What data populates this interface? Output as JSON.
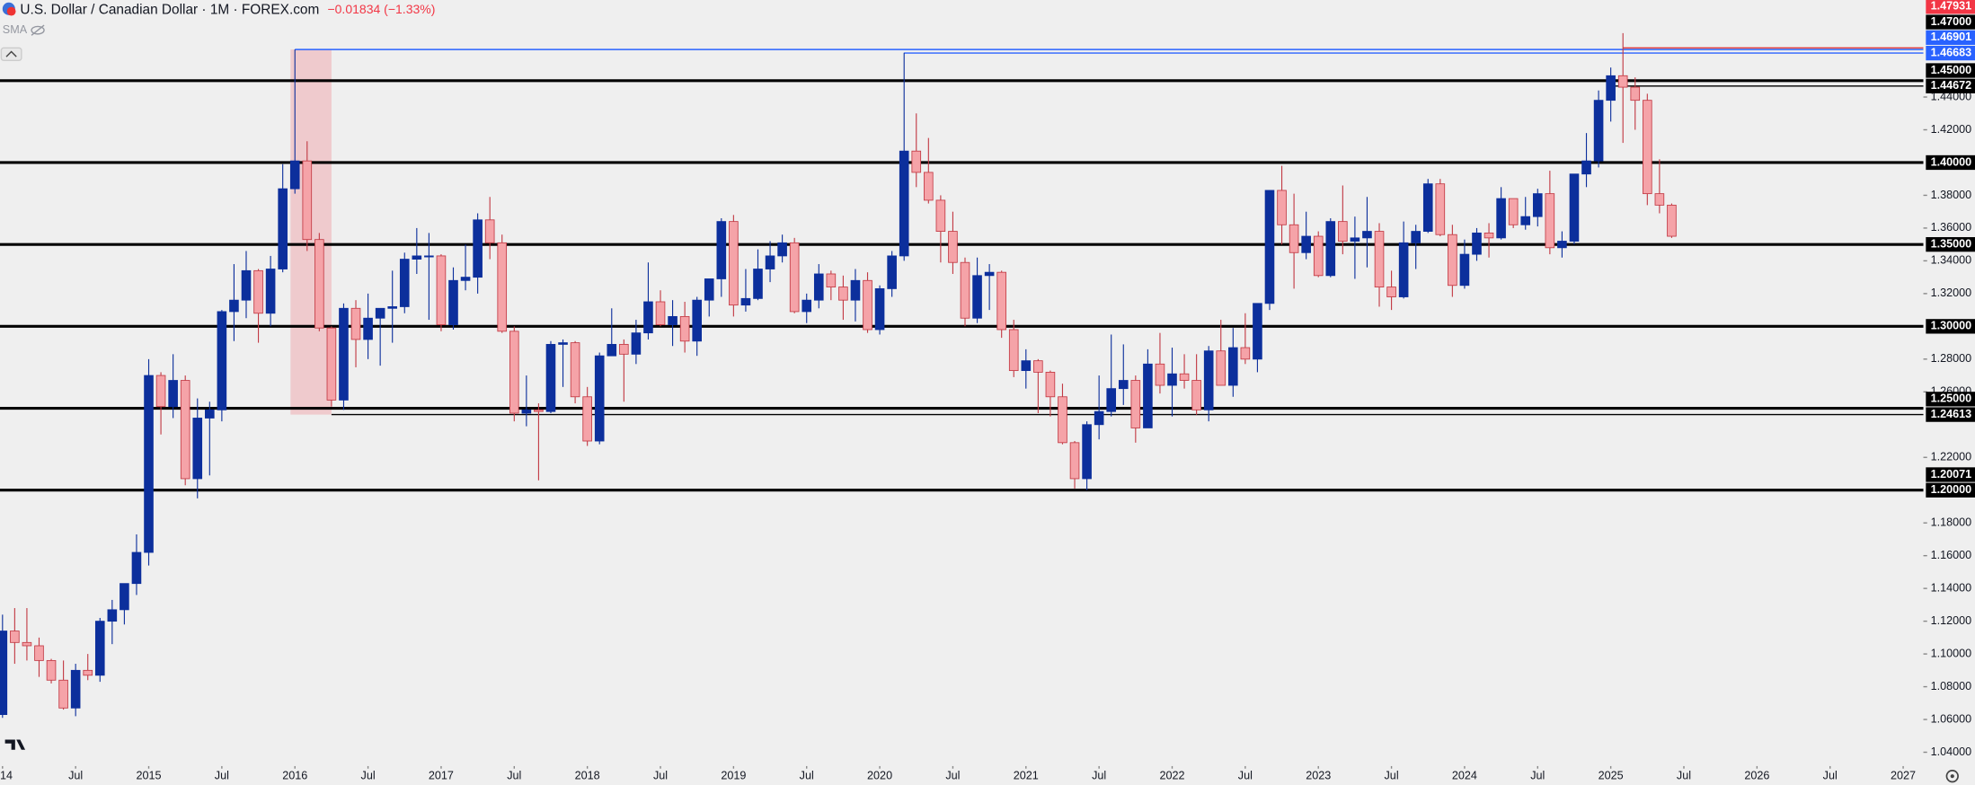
{
  "chart_data": {
    "type": "candlestick",
    "title": "U.S. Dollar / Canadian Dollar · 1M · FOREX.com",
    "change": "−0.01834 (−1.33%)",
    "indicator": "SMA",
    "up_color": "#0c2f9c",
    "down_color": "#f5a3a8",
    "down_border": "#c23a44",
    "ylim": [
      1.03,
      1.49
    ],
    "xlim": [
      "2014-01",
      "2027-04"
    ],
    "yticks": [
      {
        "value": 1.04,
        "label": "1.04000"
      },
      {
        "value": 1.06,
        "label": "1.06000"
      },
      {
        "value": 1.08,
        "label": "1.08000"
      },
      {
        "value": 1.1,
        "label": "1.10000"
      },
      {
        "value": 1.12,
        "label": "1.12000"
      },
      {
        "value": 1.14,
        "label": "1.14000"
      },
      {
        "value": 1.16,
        "label": "1.16000"
      },
      {
        "value": 1.18,
        "label": "1.18000"
      },
      {
        "value": 1.22,
        "label": "1.22000"
      },
      {
        "value": 1.26,
        "label": "1.26000"
      },
      {
        "value": 1.28,
        "label": "1.28000"
      },
      {
        "value": 1.32,
        "label": "1.32000"
      },
      {
        "value": 1.34,
        "label": "1.34000"
      },
      {
        "value": 1.36,
        "label": "1.36000"
      },
      {
        "value": 1.38,
        "label": "1.38000"
      },
      {
        "value": 1.42,
        "label": "1.42000"
      },
      {
        "value": 1.44,
        "label": "1.44000"
      }
    ],
    "xticks": [
      {
        "value": "2014-01",
        "label": "14"
      },
      {
        "value": "2014-07",
        "label": "Jul"
      },
      {
        "value": "2015-01",
        "label": "2015"
      },
      {
        "value": "2015-07",
        "label": "Jul"
      },
      {
        "value": "2016-01",
        "label": "2016"
      },
      {
        "value": "2016-07",
        "label": "Jul"
      },
      {
        "value": "2017-01",
        "label": "2017"
      },
      {
        "value": "2017-07",
        "label": "Jul"
      },
      {
        "value": "2018-01",
        "label": "2018"
      },
      {
        "value": "2018-07",
        "label": "Jul"
      },
      {
        "value": "2019-01",
        "label": "2019"
      },
      {
        "value": "2019-07",
        "label": "Jul"
      },
      {
        "value": "2020-01",
        "label": "2020"
      },
      {
        "value": "2020-07",
        "label": "Jul"
      },
      {
        "value": "2021-01",
        "label": "2021"
      },
      {
        "value": "2021-07",
        "label": "Jul"
      },
      {
        "value": "2022-01",
        "label": "2022"
      },
      {
        "value": "2022-07",
        "label": "Jul"
      },
      {
        "value": "2023-01",
        "label": "2023"
      },
      {
        "value": "2023-07",
        "label": "Jul"
      },
      {
        "value": "2024-01",
        "label": "2024"
      },
      {
        "value": "2024-07",
        "label": "Jul"
      },
      {
        "value": "2025-01",
        "label": "2025"
      },
      {
        "value": "2025-07",
        "label": "Jul"
      },
      {
        "value": "2026-01",
        "label": "2026"
      },
      {
        "value": "2026-07",
        "label": "Jul"
      },
      {
        "value": "2027-01",
        "label": "2027"
      }
    ],
    "price_labels": [
      {
        "value": 1.47931,
        "label": "1.47931",
        "bg": "#f23645"
      },
      {
        "value": 1.47,
        "label": "1.47000",
        "bg": "#000000"
      },
      {
        "value": 1.46901,
        "label": "1.46901",
        "bg": "#2962ff"
      },
      {
        "value": 1.46683,
        "label": "1.46683",
        "bg": "#2962ff"
      },
      {
        "value": 1.45,
        "label": "1.45000",
        "bg": "#000000"
      },
      {
        "value": 1.44672,
        "label": "1.44672",
        "bg": "#000000"
      },
      {
        "value": 1.4,
        "label": "1.40000",
        "bg": "#000000"
      },
      {
        "value": 1.35,
        "label": "1.35000",
        "bg": "#000000"
      },
      {
        "value": 1.3,
        "label": "1.30000",
        "bg": "#000000"
      },
      {
        "value": 1.25,
        "label": "1.25000",
        "bg": "#000000"
      },
      {
        "value": 1.24613,
        "label": "1.24613",
        "bg": "#000000"
      },
      {
        "value": 1.20071,
        "label": "1.20071",
        "bg": "#000000"
      },
      {
        "value": 1.2,
        "label": "1.20000",
        "bg": "#000000"
      }
    ],
    "price_lines": [
      {
        "value": 1.47,
        "color": "#e03a3a",
        "start": "2025-02",
        "thick": false
      },
      {
        "value": 1.46901,
        "color": "#2962ff",
        "start": "2016-01",
        "thick": false
      },
      {
        "value": 1.46683,
        "color": "#2962ff",
        "start": "2020-03",
        "thick": false
      },
      {
        "value": 1.45,
        "color": "#000000",
        "thick": true
      },
      {
        "value": 1.44672,
        "color": "#000000",
        "start": "2025-01",
        "thick": false
      },
      {
        "value": 1.4,
        "color": "#000000",
        "thick": true
      },
      {
        "value": 1.35,
        "color": "#000000",
        "thick": true
      },
      {
        "value": 1.3,
        "color": "#000000",
        "thick": true
      },
      {
        "value": 1.25,
        "color": "#000000",
        "thick": true
      },
      {
        "value": 1.24613,
        "color": "#000000",
        "start": "2016-04",
        "thick": false
      },
      {
        "value": 1.2,
        "color": "#000000",
        "thick": true
      }
    ],
    "zones": [
      {
        "from": "2016-01",
        "to": "2016-04",
        "top": 1.46901,
        "bottom": 1.24613,
        "color": "rgba(242,54,69,0.2)"
      }
    ],
    "x": [
      "2014-01",
      "2014-02",
      "2014-03",
      "2014-04",
      "2014-05",
      "2014-06",
      "2014-07",
      "2014-08",
      "2014-09",
      "2014-10",
      "2014-11",
      "2014-12",
      "2015-01",
      "2015-02",
      "2015-03",
      "2015-04",
      "2015-05",
      "2015-06",
      "2015-07",
      "2015-08",
      "2015-09",
      "2015-10",
      "2015-11",
      "2015-12",
      "2016-01",
      "2016-02",
      "2016-03",
      "2016-04",
      "2016-05",
      "2016-06",
      "2016-07",
      "2016-08",
      "2016-09",
      "2016-10",
      "2016-11",
      "2016-12",
      "2017-01",
      "2017-02",
      "2017-03",
      "2017-04",
      "2017-05",
      "2017-06",
      "2017-07",
      "2017-08",
      "2017-09",
      "2017-10",
      "2017-11",
      "2017-12",
      "2018-01",
      "2018-02",
      "2018-03",
      "2018-04",
      "2018-05",
      "2018-06",
      "2018-07",
      "2018-08",
      "2018-09",
      "2018-10",
      "2018-11",
      "2018-12",
      "2019-01",
      "2019-02",
      "2019-03",
      "2019-04",
      "2019-05",
      "2019-06",
      "2019-07",
      "2019-08",
      "2019-09",
      "2019-10",
      "2019-11",
      "2019-12",
      "2020-01",
      "2020-02",
      "2020-03",
      "2020-04",
      "2020-05",
      "2020-06",
      "2020-07",
      "2020-08",
      "2020-09",
      "2020-10",
      "2020-11",
      "2020-12",
      "2021-01",
      "2021-02",
      "2021-03",
      "2021-04",
      "2021-05",
      "2021-06",
      "2021-07",
      "2021-08",
      "2021-09",
      "2021-10",
      "2021-11",
      "2021-12",
      "2022-01",
      "2022-02",
      "2022-03",
      "2022-04",
      "2022-05",
      "2022-06",
      "2022-07",
      "2022-08",
      "2022-09",
      "2022-10",
      "2022-11",
      "2022-12",
      "2023-01",
      "2023-02",
      "2023-03",
      "2023-04",
      "2023-05",
      "2023-06",
      "2023-07",
      "2023-08",
      "2023-09",
      "2023-10",
      "2023-11",
      "2023-12",
      "2024-01",
      "2024-02",
      "2024-03",
      "2024-04",
      "2024-05",
      "2024-06",
      "2024-07",
      "2024-08",
      "2024-09",
      "2024-10",
      "2024-11",
      "2024-12",
      "2025-01",
      "2025-02",
      "2025-03",
      "2025-04",
      "2025-05",
      "2025-06"
    ],
    "candles": [
      [
        1.063,
        1.124,
        1.061,
        1.114
      ],
      [
        1.114,
        1.128,
        1.094,
        1.107
      ],
      [
        1.107,
        1.128,
        1.096,
        1.105
      ],
      [
        1.105,
        1.11,
        1.086,
        1.096
      ],
      [
        1.096,
        1.097,
        1.082,
        1.084
      ],
      [
        1.084,
        1.096,
        1.066,
        1.067
      ],
      [
        1.067,
        1.094,
        1.062,
        1.09
      ],
      [
        1.09,
        1.1,
        1.084,
        1.087
      ],
      [
        1.087,
        1.122,
        1.083,
        1.12
      ],
      [
        1.12,
        1.133,
        1.106,
        1.127
      ],
      [
        1.127,
        1.143,
        1.118,
        1.143
      ],
      [
        1.143,
        1.173,
        1.136,
        1.162
      ],
      [
        1.162,
        1.28,
        1.154,
        1.27
      ],
      [
        1.27,
        1.272,
        1.234,
        1.251
      ],
      [
        1.251,
        1.283,
        1.244,
        1.267
      ],
      [
        1.267,
        1.27,
        1.203,
        1.207
      ],
      [
        1.207,
        1.256,
        1.195,
        1.244
      ],
      [
        1.244,
        1.254,
        1.209,
        1.249
      ],
      [
        1.249,
        1.31,
        1.242,
        1.309
      ],
      [
        1.309,
        1.338,
        1.291,
        1.316
      ],
      [
        1.316,
        1.346,
        1.305,
        1.334
      ],
      [
        1.334,
        1.335,
        1.29,
        1.308
      ],
      [
        1.308,
        1.343,
        1.3,
        1.335
      ],
      [
        1.335,
        1.399,
        1.333,
        1.384
      ],
      [
        1.384,
        1.469,
        1.381,
        1.401
      ],
      [
        1.401,
        1.413,
        1.346,
        1.353
      ],
      [
        1.353,
        1.357,
        1.297,
        1.299
      ],
      [
        1.299,
        1.3,
        1.251,
        1.255
      ],
      [
        1.255,
        1.314,
        1.249,
        1.311
      ],
      [
        1.311,
        1.316,
        1.275,
        1.292
      ],
      [
        1.292,
        1.32,
        1.28,
        1.305
      ],
      [
        1.305,
        1.311,
        1.276,
        1.311
      ],
      [
        1.311,
        1.334,
        1.29,
        1.312
      ],
      [
        1.312,
        1.345,
        1.308,
        1.341
      ],
      [
        1.341,
        1.36,
        1.332,
        1.343
      ],
      [
        1.343,
        1.357,
        1.304,
        1.343
      ],
      [
        1.343,
        1.344,
        1.297,
        1.301
      ],
      [
        1.301,
        1.336,
        1.298,
        1.328
      ],
      [
        1.328,
        1.35,
        1.322,
        1.33
      ],
      [
        1.33,
        1.369,
        1.32,
        1.365
      ],
      [
        1.365,
        1.379,
        1.341,
        1.351
      ],
      [
        1.351,
        1.356,
        1.296,
        1.297
      ],
      [
        1.297,
        1.3,
        1.242,
        1.247
      ],
      [
        1.247,
        1.27,
        1.239,
        1.249
      ],
      [
        1.249,
        1.253,
        1.206,
        1.248
      ],
      [
        1.248,
        1.291,
        1.247,
        1.289
      ],
      [
        1.289,
        1.292,
        1.263,
        1.29
      ],
      [
        1.29,
        1.291,
        1.253,
        1.257
      ],
      [
        1.257,
        1.263,
        1.227,
        1.23
      ],
      [
        1.23,
        1.284,
        1.228,
        1.282
      ],
      [
        1.282,
        1.311,
        1.282,
        1.289
      ],
      [
        1.289,
        1.292,
        1.254,
        1.283
      ],
      [
        1.283,
        1.304,
        1.277,
        1.296
      ],
      [
        1.296,
        1.339,
        1.292,
        1.315
      ],
      [
        1.315,
        1.322,
        1.3,
        1.301
      ],
      [
        1.301,
        1.316,
        1.288,
        1.306
      ],
      [
        1.306,
        1.315,
        1.284,
        1.291
      ],
      [
        1.291,
        1.318,
        1.282,
        1.316
      ],
      [
        1.316,
        1.329,
        1.306,
        1.329
      ],
      [
        1.329,
        1.366,
        1.318,
        1.364
      ],
      [
        1.364,
        1.368,
        1.306,
        1.313
      ],
      [
        1.313,
        1.335,
        1.309,
        1.317
      ],
      [
        1.317,
        1.347,
        1.316,
        1.335
      ],
      [
        1.335,
        1.352,
        1.327,
        1.343
      ],
      [
        1.343,
        1.356,
        1.339,
        1.351
      ],
      [
        1.351,
        1.354,
        1.308,
        1.309
      ],
      [
        1.309,
        1.32,
        1.302,
        1.316
      ],
      [
        1.316,
        1.338,
        1.311,
        1.332
      ],
      [
        1.332,
        1.334,
        1.316,
        1.324
      ],
      [
        1.324,
        1.331,
        1.304,
        1.316
      ],
      [
        1.316,
        1.335,
        1.303,
        1.328
      ],
      [
        1.328,
        1.333,
        1.296,
        1.298
      ],
      [
        1.298,
        1.325,
        1.295,
        1.323
      ],
      [
        1.323,
        1.346,
        1.318,
        1.343
      ],
      [
        1.343,
        1.467,
        1.34,
        1.407
      ],
      [
        1.407,
        1.43,
        1.385,
        1.394
      ],
      [
        1.394,
        1.415,
        1.375,
        1.377
      ],
      [
        1.377,
        1.38,
        1.339,
        1.358
      ],
      [
        1.358,
        1.37,
        1.332,
        1.339
      ],
      [
        1.339,
        1.342,
        1.3,
        1.305
      ],
      [
        1.305,
        1.342,
        1.302,
        1.331
      ],
      [
        1.331,
        1.338,
        1.31,
        1.333
      ],
      [
        1.333,
        1.334,
        1.293,
        1.298
      ],
      [
        1.298,
        1.304,
        1.269,
        1.273
      ],
      [
        1.273,
        1.286,
        1.262,
        1.279
      ],
      [
        1.279,
        1.28,
        1.247,
        1.272
      ],
      [
        1.272,
        1.273,
        1.245,
        1.257
      ],
      [
        1.257,
        1.265,
        1.228,
        1.229
      ],
      [
        1.229,
        1.23,
        1.201,
        1.207
      ],
      [
        1.207,
        1.242,
        1.2,
        1.24
      ],
      [
        1.24,
        1.27,
        1.231,
        1.248
      ],
      [
        1.248,
        1.295,
        1.245,
        1.262
      ],
      [
        1.262,
        1.289,
        1.252,
        1.267
      ],
      [
        1.267,
        1.27,
        1.229,
        1.238
      ],
      [
        1.238,
        1.286,
        1.238,
        1.277
      ],
      [
        1.277,
        1.296,
        1.259,
        1.264
      ],
      [
        1.264,
        1.287,
        1.245,
        1.271
      ],
      [
        1.271,
        1.283,
        1.262,
        1.267
      ],
      [
        1.267,
        1.283,
        1.246,
        1.249
      ],
      [
        1.249,
        1.288,
        1.242,
        1.285
      ],
      [
        1.285,
        1.304,
        1.264,
        1.264
      ],
      [
        1.264,
        1.299,
        1.257,
        1.287
      ],
      [
        1.287,
        1.308,
        1.277,
        1.28
      ],
      [
        1.28,
        1.314,
        1.272,
        1.314
      ],
      [
        1.314,
        1.383,
        1.31,
        1.383
      ],
      [
        1.383,
        1.398,
        1.35,
        1.362
      ],
      [
        1.362,
        1.381,
        1.323,
        1.345
      ],
      [
        1.345,
        1.37,
        1.341,
        1.355
      ],
      [
        1.355,
        1.358,
        1.33,
        1.331
      ],
      [
        1.331,
        1.366,
        1.33,
        1.364
      ],
      [
        1.364,
        1.386,
        1.344,
        1.352
      ],
      [
        1.352,
        1.367,
        1.329,
        1.354
      ],
      [
        1.354,
        1.379,
        1.336,
        1.358
      ],
      [
        1.358,
        1.363,
        1.312,
        1.324
      ],
      [
        1.324,
        1.334,
        1.31,
        1.318
      ],
      [
        1.318,
        1.364,
        1.317,
        1.351
      ],
      [
        1.351,
        1.362,
        1.335,
        1.358
      ],
      [
        1.358,
        1.39,
        1.357,
        1.387
      ],
      [
        1.387,
        1.39,
        1.355,
        1.356
      ],
      [
        1.356,
        1.362,
        1.318,
        1.325
      ],
      [
        1.325,
        1.353,
        1.323,
        1.344
      ],
      [
        1.344,
        1.36,
        1.34,
        1.357
      ],
      [
        1.357,
        1.363,
        1.342,
        1.354
      ],
      [
        1.354,
        1.385,
        1.353,
        1.378
      ],
      [
        1.378,
        1.378,
        1.36,
        1.362
      ],
      [
        1.362,
        1.379,
        1.359,
        1.367
      ],
      [
        1.367,
        1.384,
        1.361,
        1.381
      ],
      [
        1.381,
        1.395,
        1.344,
        1.348
      ],
      [
        1.348,
        1.358,
        1.342,
        1.352
      ],
      [
        1.352,
        1.393,
        1.35,
        1.393
      ],
      [
        1.393,
        1.418,
        1.385,
        1.401
      ],
      [
        1.401,
        1.444,
        1.397,
        1.438
      ],
      [
        1.438,
        1.458,
        1.425,
        1.453
      ],
      [
        1.453,
        1.479,
        1.412,
        1.446
      ],
      [
        1.446,
        1.452,
        1.42,
        1.438
      ],
      [
        1.438,
        1.442,
        1.374,
        1.381
      ],
      [
        1.381,
        1.402,
        1.369,
        1.374
      ],
      [
        1.374,
        1.375,
        1.354,
        1.355
      ]
    ]
  }
}
